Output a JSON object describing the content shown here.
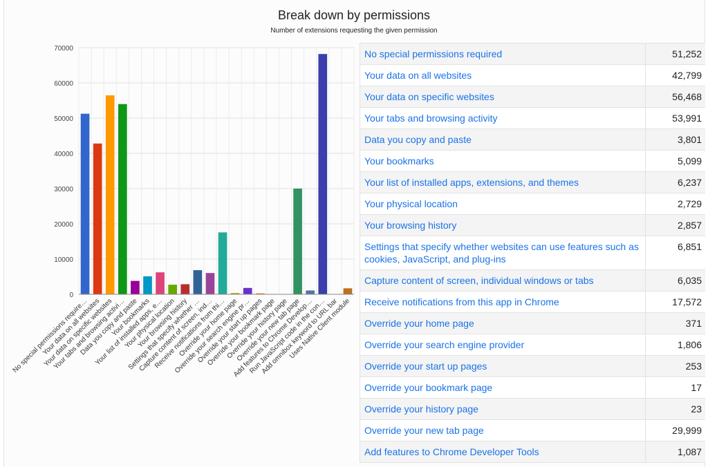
{
  "chart_data": {
    "type": "bar",
    "title": "Break down by permissions",
    "subtitle": "Number of extensions requesting the given permission",
    "ylim": [
      0,
      70000
    ],
    "yticks": [
      "0",
      "10000",
      "20000",
      "30000",
      "40000",
      "50000",
      "60000",
      "70000"
    ],
    "grid": true,
    "categories": [
      "No special permissions require…",
      "Your data on all websites",
      "Your data on specific websites",
      "Your tabs and browsing activi…",
      "Data you copy and paste",
      "Your bookmarks",
      "Your list of installed apps, e…",
      "Your physical location",
      "Your browsing history",
      "Settings that specify whether …",
      "Capture content of screen, ind…",
      "Receive notifications from thi…",
      "Override your home page",
      "Override your search engine pr…",
      "Override your start up pages",
      "Override your bookmark page",
      "Override your history page",
      "Override your new tab page",
      "Add features to Chrome Develop…",
      "Run JavaScript code in the con…",
      "Add omnibox keyword to URL bar",
      "Uses Native Client module"
    ],
    "values": [
      51252,
      42799,
      56468,
      53991,
      3801,
      5099,
      6237,
      2729,
      2857,
      6851,
      6035,
      17572,
      371,
      1806,
      253,
      17,
      23,
      29999,
      1087,
      68200,
      0,
      1700
    ],
    "colors": [
      "#3366cc",
      "#dc3912",
      "#ff9900",
      "#109618",
      "#990099",
      "#0099c6",
      "#dd4477",
      "#66aa00",
      "#b82e2e",
      "#316395",
      "#994499",
      "#22aa99",
      "#aaaa11",
      "#6633cc",
      "#e67300",
      "#8b0707",
      "#651067",
      "#329262",
      "#5574a6",
      "#3b3eac",
      "#b77322",
      "#b77322"
    ]
  },
  "table": {
    "rows": [
      {
        "name": "No special permissions required",
        "value": "51,252"
      },
      {
        "name": "Your data on all websites",
        "value": "42,799"
      },
      {
        "name": "Your data on specific websites",
        "value": "56,468"
      },
      {
        "name": "Your tabs and browsing activity",
        "value": "53,991"
      },
      {
        "name": "Data you copy and paste",
        "value": "3,801"
      },
      {
        "name": "Your bookmarks",
        "value": "5,099"
      },
      {
        "name": "Your list of installed apps, extensions, and themes",
        "value": "6,237"
      },
      {
        "name": "Your physical location",
        "value": "2,729"
      },
      {
        "name": "Your browsing history",
        "value": "2,857"
      },
      {
        "name": "Settings that specify whether websites can use features such as cookies, JavaScript, and plug-ins",
        "value": "6,851"
      },
      {
        "name": "Capture content of screen, individual windows or tabs",
        "value": "6,035"
      },
      {
        "name": "Receive notifications from this app in Chrome",
        "value": "17,572"
      },
      {
        "name": "Override your home page",
        "value": "371"
      },
      {
        "name": "Override your search engine provider",
        "value": "1,806"
      },
      {
        "name": "Override your start up pages",
        "value": "253"
      },
      {
        "name": "Override your bookmark page",
        "value": "17"
      },
      {
        "name": "Override your history page",
        "value": "23"
      },
      {
        "name": "Override your new tab page",
        "value": "29,999"
      },
      {
        "name": "Add features to Chrome Developer Tools",
        "value": "1,087"
      }
    ]
  }
}
